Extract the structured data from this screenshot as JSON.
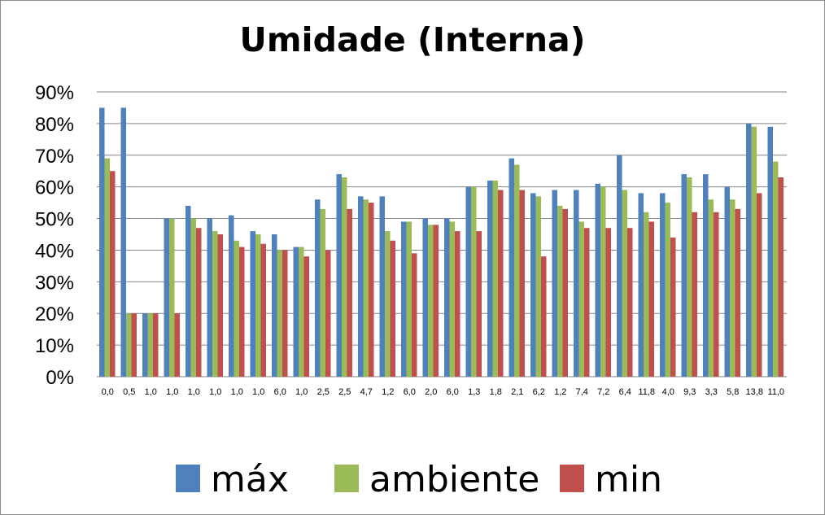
{
  "chart_data": {
    "type": "bar",
    "title": "Umidade (Interna)",
    "xlabel": "",
    "ylabel": "",
    "ylim": [
      0,
      90
    ],
    "yticks": [
      "0%",
      "10%",
      "20%",
      "30%",
      "40%",
      "50%",
      "60%",
      "70%",
      "80%",
      "90%"
    ],
    "grid": true,
    "legend_position": "bottom",
    "categories": [
      "0,0",
      "0,5",
      "1,0",
      "1,0",
      "1,0",
      "1,0",
      "1,0",
      "1,0",
      "6,0",
      "1,0",
      "2,5",
      "2,5",
      "4,7",
      "1,2",
      "6,0",
      "2,0",
      "6,0",
      "1,3",
      "1,8",
      "2,1",
      "6,2",
      "1,2",
      "7,4",
      "7,2",
      "6,4",
      "11,8",
      "4,0",
      "9,3",
      "3,3",
      "5,8",
      "13,8",
      "11,0"
    ],
    "series": [
      {
        "name": "máx",
        "color": "#4f81bd",
        "values": [
          85,
          85,
          20,
          50,
          54,
          50,
          51,
          46,
          45,
          41,
          56,
          64,
          57,
          57,
          49,
          50,
          50,
          60,
          62,
          69,
          58,
          59,
          59,
          61,
          70,
          58,
          58,
          64,
          64,
          60,
          80,
          79
        ]
      },
      {
        "name": "ambiente",
        "color": "#9bbb59",
        "values": [
          69,
          20,
          20,
          50,
          50,
          46,
          43,
          45,
          40,
          41,
          53,
          63,
          56,
          46,
          49,
          48,
          49,
          60,
          62,
          67,
          57,
          54,
          49,
          60,
          59,
          52,
          55,
          63,
          56,
          56,
          79,
          68
        ]
      },
      {
        "name": "min",
        "color": "#c0504d",
        "values": [
          65,
          20,
          20,
          20,
          47,
          45,
          41,
          42,
          40,
          38,
          40,
          53,
          55,
          43,
          39,
          48,
          46,
          46,
          59,
          59,
          38,
          53,
          47,
          47,
          47,
          49,
          44,
          52,
          52,
          53,
          58,
          63
        ]
      }
    ]
  }
}
